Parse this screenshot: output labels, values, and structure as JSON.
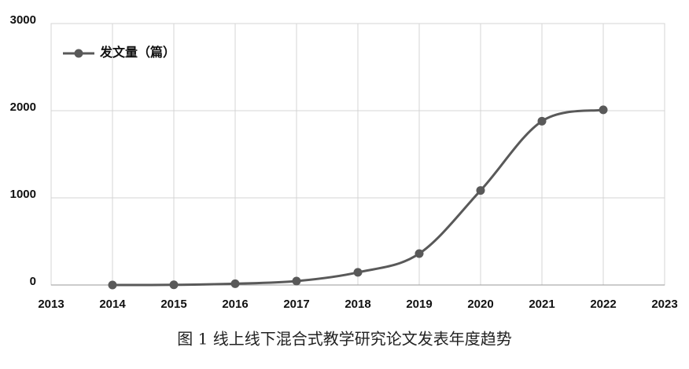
{
  "chart_data": {
    "type": "line",
    "caption": "图 1 线上线下混合式教学研究论文发表年度趋势",
    "x": [
      2014,
      2015,
      2016,
      2017,
      2018,
      2019,
      2020,
      2021,
      2022
    ],
    "series": [
      {
        "name": "发文量（篇）",
        "color": "#595959",
        "values": [
          0,
          2,
          15,
          45,
          145,
          360,
          1085,
          1880,
          2010
        ]
      }
    ],
    "xlim": [
      2013,
      2023
    ],
    "xticks": [
      2013,
      2014,
      2015,
      2016,
      2017,
      2018,
      2019,
      2020,
      2021,
      2022,
      2023
    ],
    "ylim": [
      0,
      3000
    ],
    "yticks": [
      0,
      1000,
      2000,
      3000
    ],
    "grid": true,
    "legend": "top-left",
    "smooth": true
  }
}
